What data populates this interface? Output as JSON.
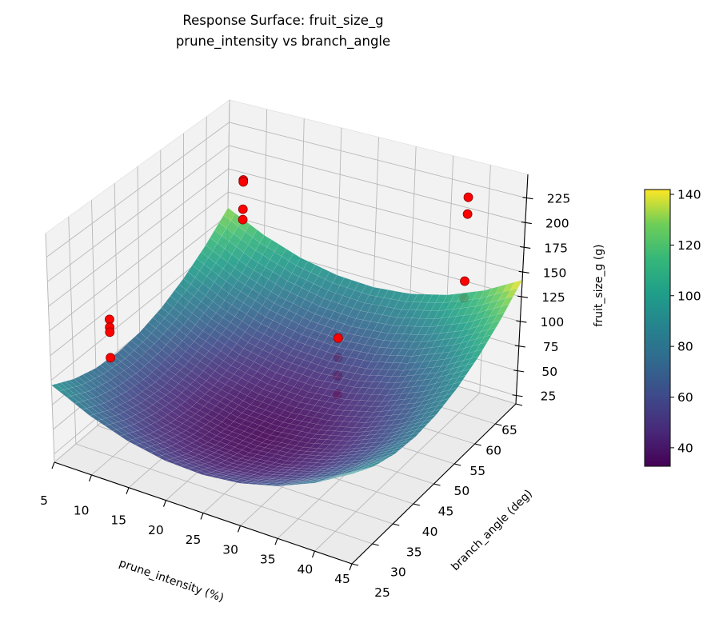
{
  "chart_data": {
    "type": "surface3d",
    "title_line1": "Response Surface: fruit_size_g",
    "title_line2": "prune_intensity vs branch_angle",
    "xlabel": "prune_intensity (%)",
    "ylabel": "branch_angle (deg)",
    "zlabel": "fruit_size_g (g)",
    "xlim": [
      5,
      45
    ],
    "ylim": [
      25,
      65
    ],
    "zlim": [
      16.7,
      249
    ],
    "xticks": [
      5,
      10,
      15,
      20,
      25,
      30,
      35,
      40,
      45
    ],
    "yticks": [
      25,
      30,
      35,
      40,
      45,
      50,
      55,
      60,
      65
    ],
    "zticks": [
      25,
      50,
      75,
      100,
      125,
      150,
      175,
      200,
      225
    ],
    "grid": true,
    "colormap": "viridis",
    "colorbar": {
      "range": [
        32.7,
        141.9
      ],
      "ticks": [
        40,
        60,
        80,
        100,
        120,
        140
      ],
      "placement": "right"
    },
    "surface": {
      "x": [
        5,
        10,
        15,
        20,
        25,
        30,
        35,
        40,
        45
      ],
      "y": [
        25,
        30,
        35,
        40,
        45,
        50,
        55,
        60,
        65
      ],
      "z": [
        [
          95.0,
          76.5,
          63.5,
          56.2,
          54.5,
          58.5,
          68.0,
          83.2,
          104.1
        ],
        [
          83.1,
          64.6,
          51.6,
          44.3,
          42.6,
          46.6,
          56.1,
          71.3,
          92.2
        ],
        [
          76.0,
          57.5,
          44.5,
          37.2,
          35.5,
          39.5,
          49.0,
          64.2,
          85.1
        ],
        [
          73.6,
          55.1,
          42.1,
          34.8,
          33.1,
          37.1,
          46.6,
          61.8,
          82.7
        ],
        [
          76.0,
          57.5,
          44.5,
          37.2,
          35.5,
          39.5,
          49.0,
          64.2,
          85.1
        ],
        [
          83.1,
          64.6,
          51.6,
          44.3,
          42.6,
          46.6,
          56.1,
          71.3,
          92.2
        ],
        [
          95.0,
          76.5,
          63.5,
          56.2,
          54.5,
          58.5,
          68.0,
          83.2,
          104.1
        ],
        [
          111.6,
          93.1,
          80.1,
          72.8,
          71.1,
          75.1,
          84.6,
          99.8,
          120.7
        ],
        [
          133.0,
          114.5,
          101.5,
          94.2,
          92.5,
          96.5,
          106.0,
          121.2,
          142.1
        ]
      ]
    },
    "scatter": {
      "color": "#ff0000",
      "points": [
        {
          "x": 10,
          "y": 30,
          "z": 156,
          "behind_surface": false
        },
        {
          "x": 10,
          "y": 30,
          "z": 148,
          "behind_surface": false
        },
        {
          "x": 10,
          "y": 30,
          "z": 143,
          "behind_surface": false
        },
        {
          "x": 10,
          "y": 30,
          "z": 117,
          "behind_surface": false
        },
        {
          "x": 10,
          "y": 60,
          "z": 192,
          "behind_surface": false
        },
        {
          "x": 10,
          "y": 60,
          "z": 190,
          "behind_surface": false
        },
        {
          "x": 10,
          "y": 60,
          "z": 161,
          "behind_surface": false
        },
        {
          "x": 10,
          "y": 60,
          "z": 150,
          "behind_surface": false
        },
        {
          "x": 40,
          "y": 30,
          "z": 206,
          "behind_surface": false
        },
        {
          "x": 40,
          "y": 30,
          "z": 187,
          "behind_surface": true
        },
        {
          "x": 40,
          "y": 30,
          "z": 169,
          "behind_surface": true
        },
        {
          "x": 40,
          "y": 30,
          "z": 151,
          "behind_surface": true
        },
        {
          "x": 40,
          "y": 60,
          "z": 235,
          "behind_surface": false
        },
        {
          "x": 40,
          "y": 60,
          "z": 218,
          "behind_surface": false
        },
        {
          "x": 40,
          "y": 60,
          "z": 150,
          "behind_surface": false
        },
        {
          "x": 40,
          "y": 60,
          "z": 133,
          "behind_surface": true
        }
      ]
    }
  }
}
